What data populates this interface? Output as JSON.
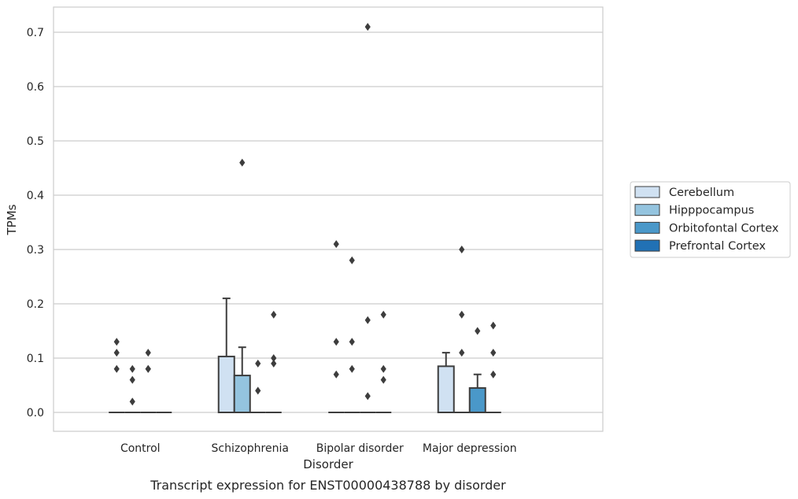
{
  "caption": "Transcript expression for ENST00000438788 by disorder",
  "chart_data": {
    "type": "box",
    "title": "",
    "xlabel": "Disorder",
    "ylabel": "TPMs",
    "categories": [
      "Control",
      "Schizophrenia",
      "Bipolar disorder",
      "Major depression"
    ],
    "ylim": [
      -0.035,
      0.745
    ],
    "yticks": [
      0.0,
      0.1,
      0.2,
      0.3,
      0.4,
      0.5,
      0.6,
      0.7
    ],
    "ytick_labels": [
      "0.0",
      "0.1",
      "0.2",
      "0.3",
      "0.4",
      "0.5",
      "0.6",
      "0.7"
    ],
    "grid": true,
    "legend_position": "right",
    "series": [
      {
        "name": "Cerebellum",
        "color": "#d0e1f2",
        "boxes": [
          {
            "q1": 0,
            "median": 0,
            "q3": 0,
            "whisker_low": 0,
            "whisker_high": 0,
            "outliers": [
              0.08,
              0.13,
              0.11
            ]
          },
          {
            "q1": 0,
            "median": 0,
            "q3": 0.103,
            "whisker_low": 0,
            "whisker_high": 0.21,
            "outliers": []
          },
          {
            "q1": 0,
            "median": 0,
            "q3": 0,
            "whisker_low": 0,
            "whisker_high": 0,
            "outliers": [
              0.31,
              0.13,
              0.07
            ]
          },
          {
            "q1": 0,
            "median": 0,
            "q3": 0.085,
            "whisker_low": 0,
            "whisker_high": 0.11,
            "outliers": []
          }
        ]
      },
      {
        "name": "Hipppocampus",
        "color": "#94c4df",
        "boxes": [
          {
            "q1": 0,
            "median": 0,
            "q3": 0,
            "whisker_low": 0,
            "whisker_high": 0,
            "outliers": [
              0.08,
              0.06,
              0.02
            ]
          },
          {
            "q1": 0,
            "median": 0,
            "q3": 0.068,
            "whisker_low": 0,
            "whisker_high": 0.12,
            "outliers": [
              0.46
            ]
          },
          {
            "q1": 0,
            "median": 0,
            "q3": 0,
            "whisker_low": 0,
            "whisker_high": 0,
            "outliers": [
              0.28,
              0.13,
              0.08
            ]
          },
          {
            "q1": 0,
            "median": 0,
            "q3": 0,
            "whisker_low": 0,
            "whisker_high": 0,
            "outliers": [
              0.3,
              0.18,
              0.11
            ]
          }
        ]
      },
      {
        "name": "Orbitofontal Cortex",
        "color": "#4a98c9",
        "boxes": [
          {
            "q1": 0,
            "median": 0,
            "q3": 0,
            "whisker_low": 0,
            "whisker_high": 0,
            "outliers": [
              0.11,
              0.08,
              0.08
            ]
          },
          {
            "q1": 0,
            "median": 0,
            "q3": 0,
            "whisker_low": 0,
            "whisker_high": 0,
            "outliers": [
              0.09,
              0.04
            ]
          },
          {
            "q1": 0,
            "median": 0,
            "q3": 0,
            "whisker_low": 0,
            "whisker_high": 0,
            "outliers": [
              0.71,
              0.17,
              0.03
            ]
          },
          {
            "q1": 0,
            "median": 0,
            "q3": 0.045,
            "whisker_low": 0,
            "whisker_high": 0.07,
            "outliers": [
              0.15
            ]
          }
        ]
      },
      {
        "name": "Prefrontal Cortex",
        "color": "#2171b5",
        "boxes": [
          {
            "q1": 0,
            "median": 0,
            "q3": 0,
            "whisker_low": 0,
            "whisker_high": 0,
            "outliers": []
          },
          {
            "q1": 0,
            "median": 0,
            "q3": 0,
            "whisker_low": 0,
            "whisker_high": 0,
            "outliers": [
              0.18,
              0.1,
              0.09
            ]
          },
          {
            "q1": 0,
            "median": 0,
            "q3": 0,
            "whisker_low": 0,
            "whisker_high": 0,
            "outliers": [
              0.18,
              0.08,
              0.06
            ]
          },
          {
            "q1": 0,
            "median": 0,
            "q3": 0,
            "whisker_low": 0,
            "whisker_high": 0,
            "outliers": [
              0.16,
              0.11,
              0.07
            ]
          }
        ]
      }
    ]
  }
}
